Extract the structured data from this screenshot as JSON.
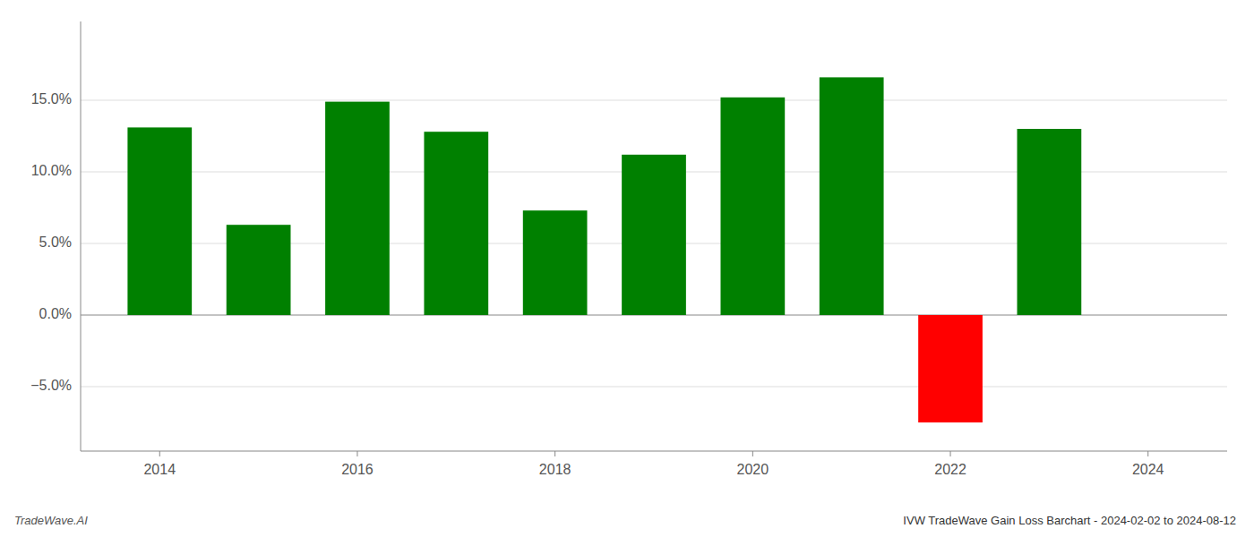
{
  "chart_data": {
    "type": "bar",
    "title": "IVW TradeWave Gain Loss Barchart - 2024-02-02 to 2024-08-12",
    "annotations": [
      "TradeWave.AI"
    ],
    "x": [
      2014,
      2015,
      2016,
      2017,
      2018,
      2019,
      2020,
      2021,
      2022,
      2023
    ],
    "values": [
      0.131,
      0.063,
      0.149,
      0.128,
      0.073,
      0.112,
      0.152,
      0.166,
      -0.075,
      0.13
    ],
    "colors": [
      "#008000",
      "#008000",
      "#008000",
      "#008000",
      "#008000",
      "#008000",
      "#008000",
      "#008000",
      "#ff0000",
      "#008000"
    ],
    "xlim": [
      2013.2,
      2024.8
    ],
    "xticks": [
      2014,
      2016,
      2018,
      2020,
      2022,
      2024
    ],
    "ylim": [
      -0.095,
      0.205
    ],
    "yticks": [
      {
        "value": -0.05,
        "label": "−5.0%"
      },
      {
        "value": 0.0,
        "label": "0.0%"
      },
      {
        "value": 0.05,
        "label": "5.0%"
      },
      {
        "value": 0.1,
        "label": "10.0%"
      },
      {
        "value": 0.15,
        "label": "15.0%"
      }
    ],
    "grid": true
  }
}
